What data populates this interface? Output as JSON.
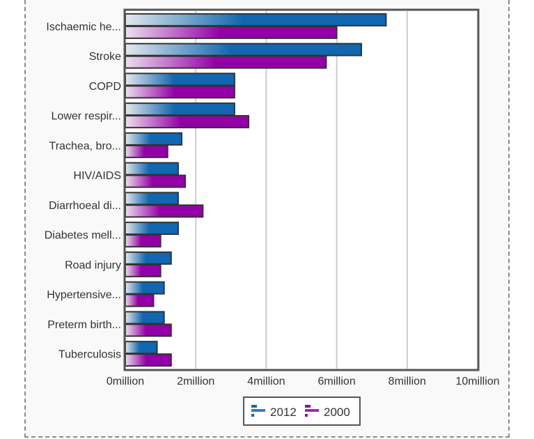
{
  "chart_data": {
    "type": "bar",
    "orientation": "horizontal",
    "title": "",
    "xlabel": "",
    "ylabel": "",
    "categories": [
      "Ischaemic he...",
      "Stroke",
      "COPD",
      "Lower respir...",
      "Trachea, bro...",
      "HIV/AIDS",
      "Diarrhoeal di...",
      "Diabetes mell...",
      "Road injury",
      "Hypertensive...",
      "Preterm birth...",
      "Tuberculosis"
    ],
    "series": [
      {
        "name": "2012",
        "color": "#1167b1",
        "values": [
          7.4,
          6.7,
          3.1,
          3.1,
          1.6,
          1.5,
          1.5,
          1.5,
          1.3,
          1.1,
          1.1,
          0.9
        ]
      },
      {
        "name": "2000",
        "color": "#9400a8",
        "values": [
          6.0,
          5.7,
          3.1,
          3.5,
          1.2,
          1.7,
          2.2,
          1.0,
          1.0,
          0.8,
          1.3,
          1.3
        ]
      }
    ],
    "xlim": [
      0,
      10
    ],
    "x_unit": "million",
    "x_ticks": [
      0,
      2,
      4,
      6,
      8,
      10
    ],
    "x_tick_labels": [
      "0million",
      "2million",
      "4million",
      "6million",
      "8million",
      "10million"
    ],
    "grid": true,
    "legend_position": "bottom-center"
  }
}
